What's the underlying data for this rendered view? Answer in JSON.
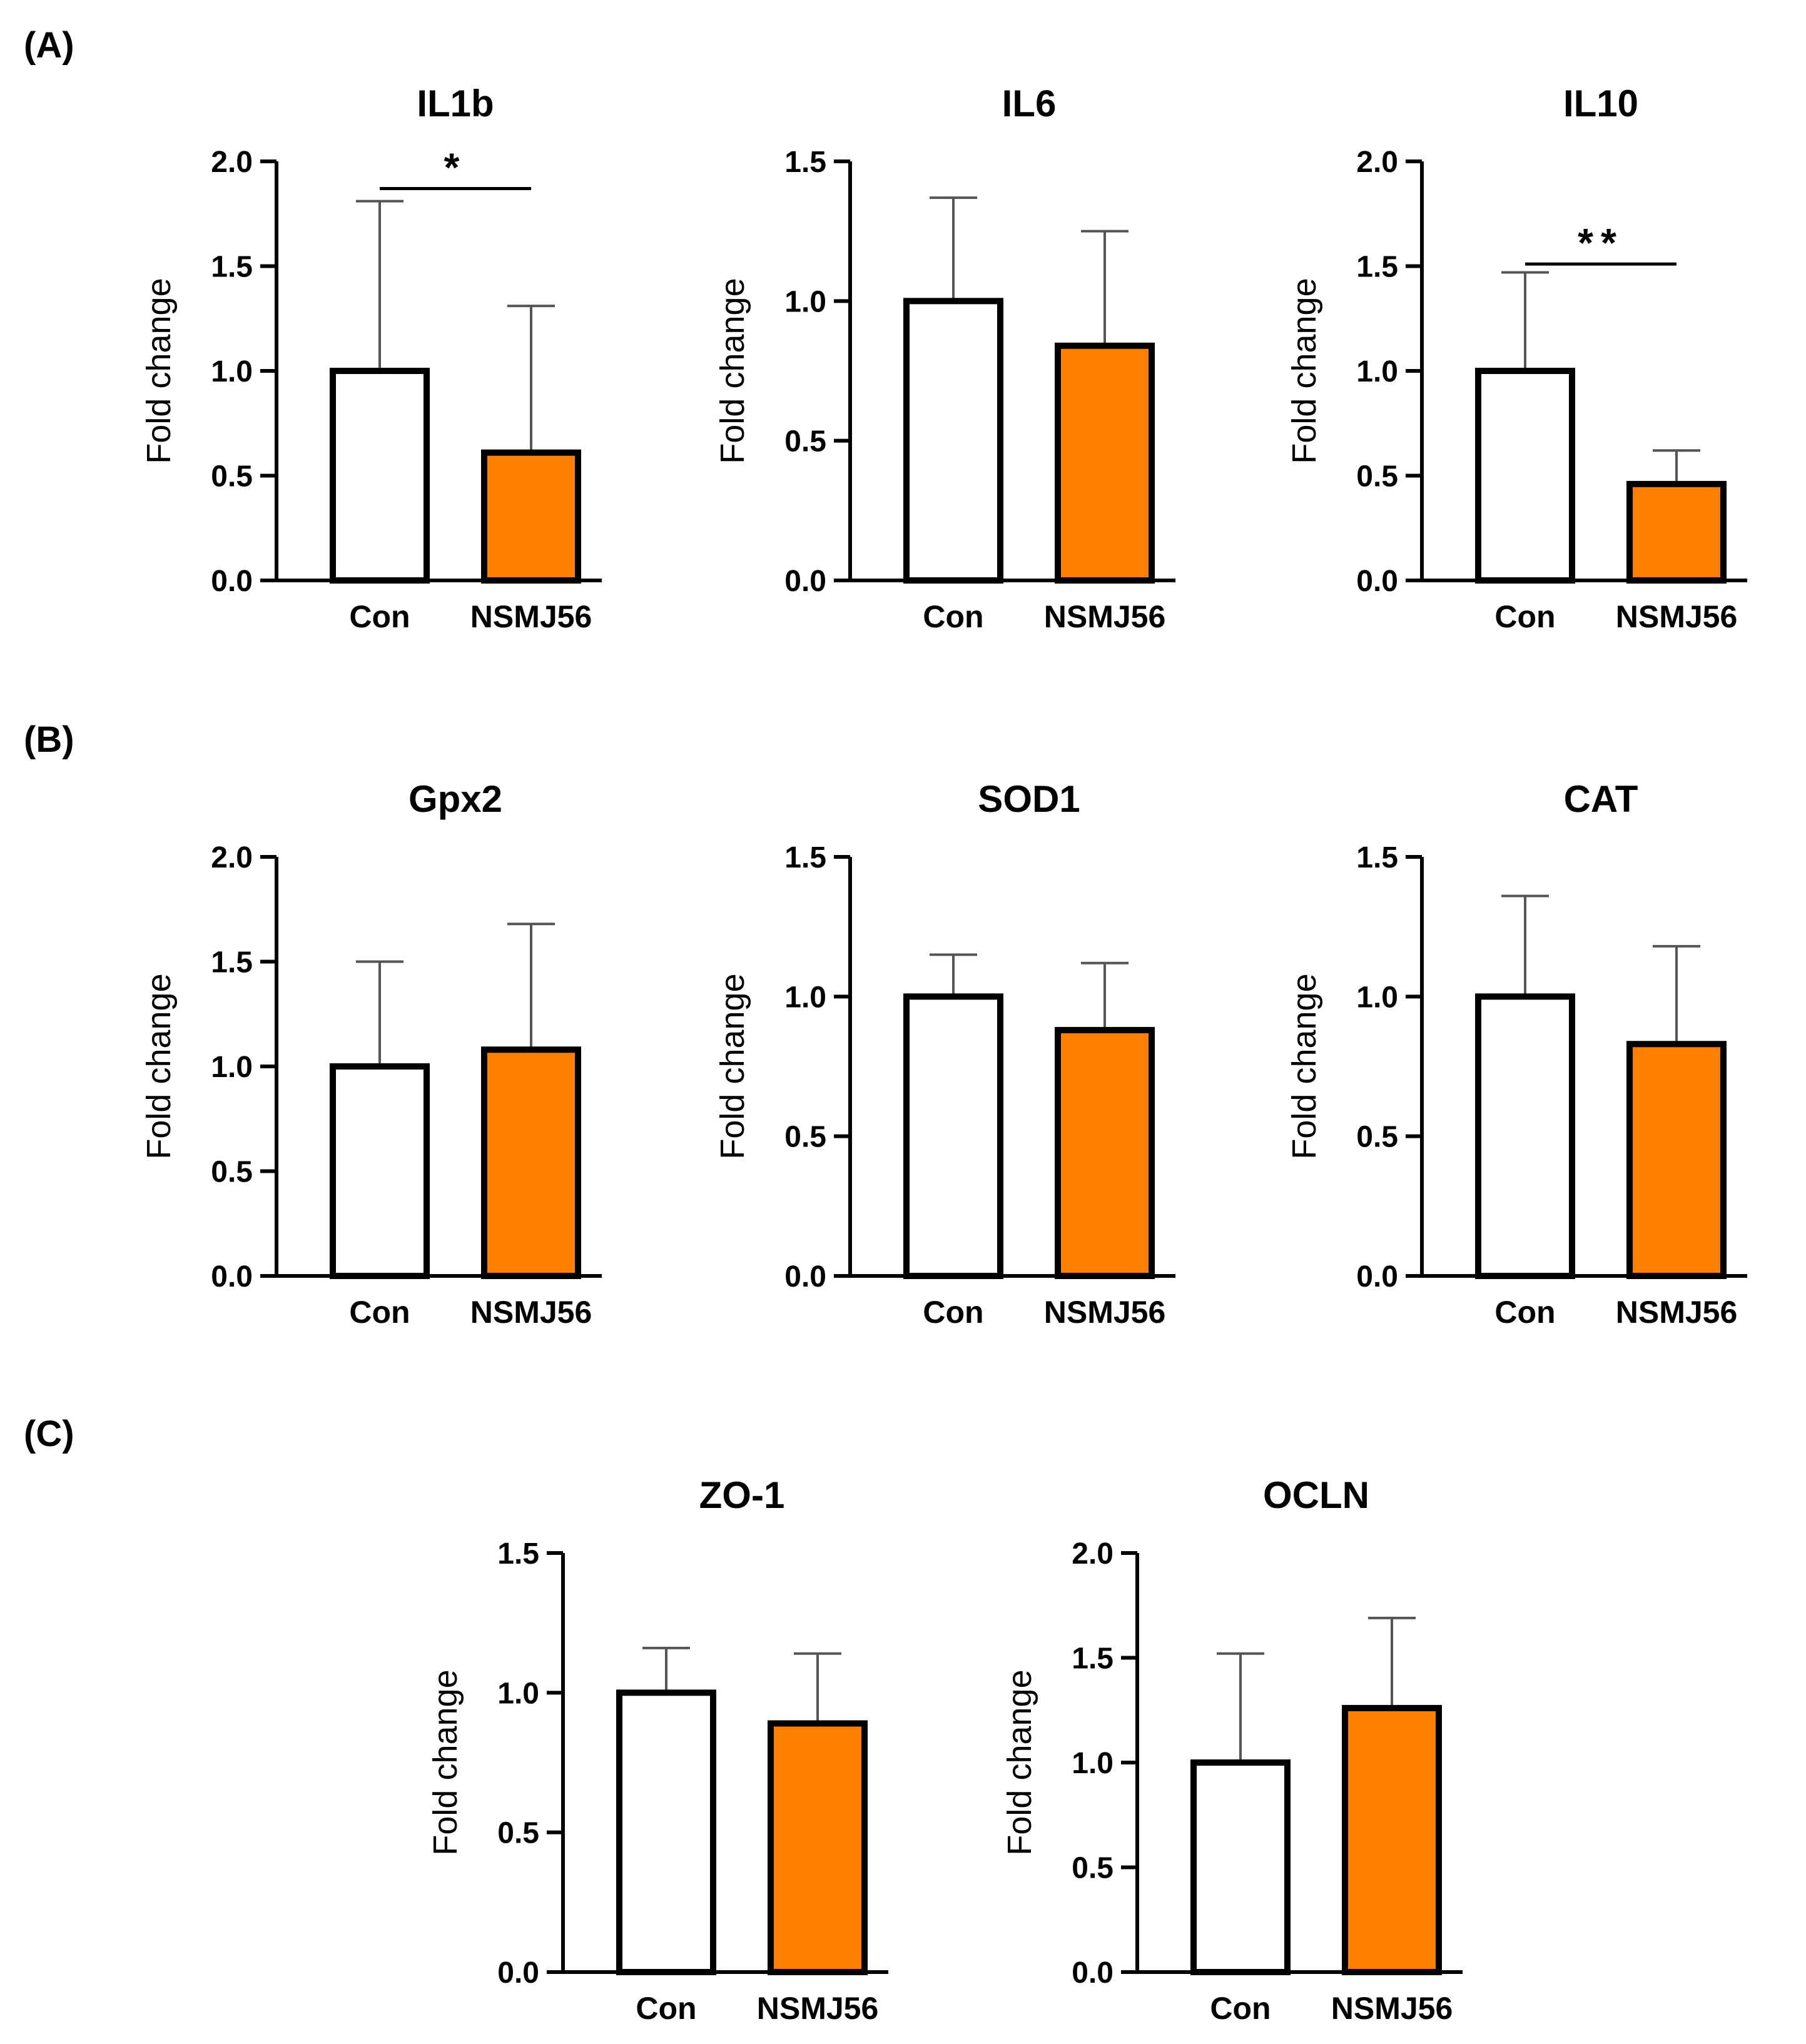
{
  "panels": [
    {
      "label": "(A)"
    },
    {
      "label": "(B)"
    },
    {
      "label": "(C)"
    }
  ],
  "chart_data": [
    {
      "type": "bar",
      "panel": "A",
      "title": "IL1b",
      "ylabel": "Fold change",
      "categories": [
        "Con",
        "NSMJ56"
      ],
      "values": [
        1.0,
        0.61
      ],
      "errors_upper": [
        1.81,
        1.31
      ],
      "colors": [
        "#ffffff",
        "#ff8000"
      ],
      "ylim": [
        0,
        2.0
      ],
      "yticks": [
        0,
        0.5,
        1.0,
        1.5,
        2.0
      ],
      "ytick_labels": [
        "0.0",
        "0.5",
        "1.0",
        "1.5",
        "2.0"
      ],
      "significance": {
        "text": "*",
        "y": 1.87
      }
    },
    {
      "type": "bar",
      "panel": "A",
      "title": "IL6",
      "ylabel": "Fold change",
      "categories": [
        "Con",
        "NSMJ56"
      ],
      "values": [
        1.0,
        0.84
      ],
      "errors_upper": [
        1.37,
        1.25
      ],
      "colors": [
        "#ffffff",
        "#ff8000"
      ],
      "ylim": [
        0,
        1.5
      ],
      "yticks": [
        0,
        0.5,
        1.0,
        1.5
      ],
      "ytick_labels": [
        "0.0",
        "0.5",
        "1.0",
        "1.5"
      ]
    },
    {
      "type": "bar",
      "panel": "A",
      "title": "IL10",
      "ylabel": "Fold change",
      "categories": [
        "Con",
        "NSMJ56"
      ],
      "values": [
        1.0,
        0.46
      ],
      "errors_upper": [
        1.47,
        0.62
      ],
      "colors": [
        "#ffffff",
        "#ff8000"
      ],
      "ylim": [
        0,
        2.0
      ],
      "yticks": [
        0,
        0.5,
        1.0,
        1.5,
        2.0
      ],
      "ytick_labels": [
        "0.0",
        "0.5",
        "1.0",
        "1.5",
        "2.0"
      ],
      "significance": {
        "text": "**",
        "y": 1.51
      }
    },
    {
      "type": "bar",
      "panel": "B",
      "title": "Gpx2",
      "ylabel": "Fold change",
      "categories": [
        "Con",
        "NSMJ56"
      ],
      "values": [
        1.0,
        1.08
      ],
      "errors_upper": [
        1.5,
        1.68
      ],
      "colors": [
        "#ffffff",
        "#ff8000"
      ],
      "ylim": [
        0,
        2.0
      ],
      "yticks": [
        0,
        0.5,
        1.0,
        1.5,
        2.0
      ],
      "ytick_labels": [
        "0.0",
        "0.5",
        "1.0",
        "1.5",
        "2.0"
      ]
    },
    {
      "type": "bar",
      "panel": "B",
      "title": "SOD1",
      "ylabel": "Fold change",
      "categories": [
        "Con",
        "NSMJ56"
      ],
      "values": [
        1.0,
        0.88
      ],
      "errors_upper": [
        1.15,
        1.12
      ],
      "colors": [
        "#ffffff",
        "#ff8000"
      ],
      "ylim": [
        0,
        1.5
      ],
      "yticks": [
        0,
        0.5,
        1.0,
        1.5
      ],
      "ytick_labels": [
        "0.0",
        "0.5",
        "1.0",
        "1.5"
      ]
    },
    {
      "type": "bar",
      "panel": "B",
      "title": "CAT",
      "ylabel": "Fold change",
      "categories": [
        "Con",
        "NSMJ56"
      ],
      "values": [
        1.0,
        0.83
      ],
      "errors_upper": [
        1.36,
        1.18
      ],
      "colors": [
        "#ffffff",
        "#ff8000"
      ],
      "ylim": [
        0,
        1.5
      ],
      "yticks": [
        0,
        0.5,
        1.0,
        1.5
      ],
      "ytick_labels": [
        "0.0",
        "0.5",
        "1.0",
        "1.5"
      ]
    },
    {
      "type": "bar",
      "panel": "C",
      "title": "ZO-1",
      "ylabel": "Fold change",
      "categories": [
        "Con",
        "NSMJ56"
      ],
      "values": [
        1.0,
        0.89
      ],
      "errors_upper": [
        1.16,
        1.14
      ],
      "colors": [
        "#ffffff",
        "#ff8000"
      ],
      "ylim": [
        0,
        1.5
      ],
      "yticks": [
        0,
        0.5,
        1.0,
        1.5
      ],
      "ytick_labels": [
        "0.0",
        "0.5",
        "1.0",
        "1.5"
      ]
    },
    {
      "type": "bar",
      "panel": "C",
      "title": "OCLN",
      "ylabel": "Fold change",
      "categories": [
        "Con",
        "NSMJ56"
      ],
      "values": [
        1.0,
        1.26
      ],
      "errors_upper": [
        1.52,
        1.69
      ],
      "colors": [
        "#ffffff",
        "#ff8000"
      ],
      "ylim": [
        0,
        2.0
      ],
      "yticks": [
        0,
        0.5,
        1.0,
        1.5,
        2.0
      ],
      "ytick_labels": [
        "0.0",
        "0.5",
        "1.0",
        "1.5",
        "2.0"
      ]
    }
  ]
}
